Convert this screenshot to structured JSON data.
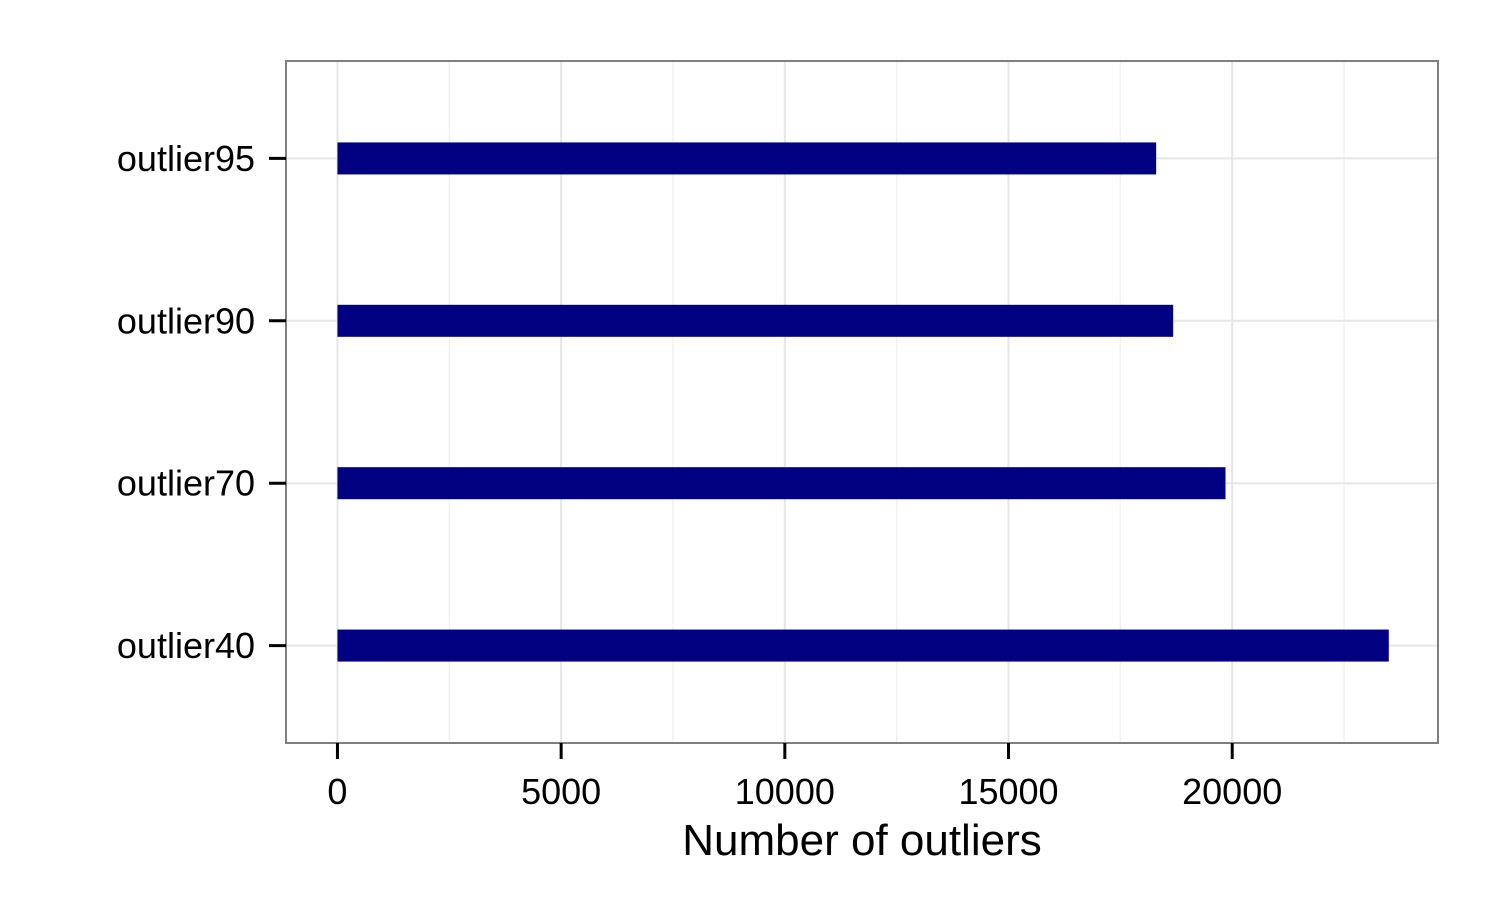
{
  "chart_data": {
    "type": "bar",
    "orientation": "horizontal",
    "categories": [
      "outlier40",
      "outlier70",
      "outlier90",
      "outlier95"
    ],
    "values": [
      23500,
      19850,
      18680,
      18300
    ],
    "title": "",
    "xlabel": "Number of outliers",
    "ylabel": "",
    "xlim": [
      -1150,
      24600
    ],
    "xticks": [
      0,
      5000,
      10000,
      15000,
      20000
    ],
    "xtick_labels": [
      "0",
      "5000",
      "10000",
      "15000",
      "20000"
    ],
    "grid": true,
    "legend": "none",
    "colors": {
      "bar": "#000080",
      "panel_border": "#7f7f7f",
      "grid_major": "#e6e6e6",
      "grid_minor": "#f2f2f2",
      "background": "#ffffff"
    }
  }
}
